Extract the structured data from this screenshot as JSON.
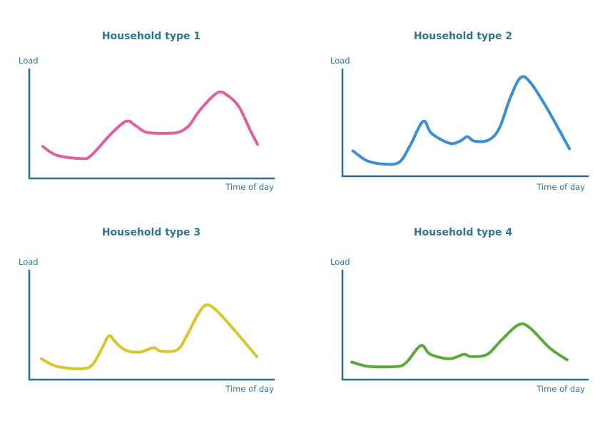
{
  "chart_data": [
    {
      "type": "line",
      "title": "Household type 1",
      "xlabel": "Time of day",
      "ylabel": "Load",
      "color": "#e0609f",
      "xlim": [
        0,
        100
      ],
      "ylim": [
        0,
        100
      ],
      "grid": false,
      "x": [
        5.5,
        11.3,
        21.5,
        25.3,
        33.1,
        39.5,
        43.3,
        47.7,
        54.9,
        60.8,
        65.1,
        69.5,
        76.7,
        81.1,
        85.5,
        89.8,
        93.0
      ],
      "y": [
        29,
        21,
        18,
        21,
        40,
        52,
        48,
        42,
        41,
        42,
        48,
        62,
        78,
        75,
        65,
        45,
        31
      ]
    },
    {
      "type": "line",
      "title": "Household type 2",
      "xlabel": "Time of day",
      "ylabel": "Load",
      "color": "#3a8fd4",
      "xlim": [
        0,
        100
      ],
      "ylim": [
        0,
        100
      ],
      "grid": false,
      "x": [
        4.3,
        10.1,
        17.4,
        23.2,
        27.5,
        32.8,
        36.2,
        43.5,
        47.8,
        50.7,
        53.6,
        59.4,
        63.8,
        68.1,
        72.5,
        76.8,
        84.1,
        92.2
      ],
      "y": [
        23,
        14,
        11,
        13,
        28,
        50,
        39,
        30,
        32,
        36,
        32,
        33,
        44,
        71,
        90,
        84,
        58,
        25
      ]
    },
    {
      "type": "line",
      "title": "Household type 3",
      "xlabel": "Time of day",
      "ylabel": "Load",
      "color": "#d9c62b",
      "xlim": [
        0,
        100
      ],
      "ylim": [
        0,
        100
      ],
      "grid": false,
      "x": [
        4.9,
        11.3,
        21.5,
        25.9,
        30.2,
        32.6,
        35.2,
        39.0,
        44.8,
        50.6,
        53.5,
        60.2,
        64.2,
        68.9,
        72.4,
        76.7,
        84.0,
        92.7
      ],
      "y": [
        19,
        12,
        10,
        14,
        31,
        40,
        34,
        27,
        25,
        29,
        26,
        27,
        40,
        60,
        68,
        62,
        44,
        21
      ]
    },
    {
      "type": "line",
      "title": "Household type 4",
      "xlabel": "Time of day",
      "ylabel": "Load",
      "color": "#5aaa3a",
      "xlim": [
        0,
        100
      ],
      "ylim": [
        0,
        100
      ],
      "grid": false,
      "x": [
        3.8,
        10.7,
        22.3,
        26.1,
        31.9,
        35.7,
        43.5,
        49.3,
        52.2,
        58.8,
        64.6,
        71.6,
        76.2,
        84.1,
        91.3
      ],
      "y": [
        16,
        12,
        12,
        16,
        31,
        23,
        19,
        23,
        21,
        23,
        36,
        50,
        47,
        29,
        18
      ]
    }
  ]
}
